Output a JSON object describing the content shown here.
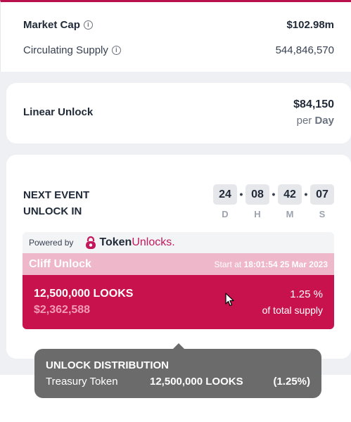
{
  "market": {
    "market_cap_label": "Market Cap",
    "market_cap_value": "$102.98m",
    "circulating_label": "Circulating Supply",
    "circulating_value": "544,846,570",
    "info_icon": "info-icon"
  },
  "linear": {
    "label": "Linear Unlock",
    "amount": "$84,150",
    "per": "per",
    "period": "Day"
  },
  "next_event": {
    "title_line1": "NEXT EVENT",
    "title_line2": "UNLOCK IN",
    "countdown": [
      {
        "value": "24",
        "unit": "D"
      },
      {
        "value": "08",
        "unit": "H"
      },
      {
        "value": "42",
        "unit": "M"
      },
      {
        "value": "07",
        "unit": "S"
      }
    ],
    "separator": "•"
  },
  "powered": {
    "label": "Powered by",
    "brand_token": "Token",
    "brand_unlocks": "Unlocks."
  },
  "cliff": {
    "title": "Cliff Unlock",
    "start_prefix": "Start at",
    "start_value": "18:01:54 25 Mar 2023",
    "amount": "12,500,000 LOOKS",
    "usd": "$2,362,588",
    "pct": "1.25 %",
    "of_supply": "of total supply"
  },
  "tooltip": {
    "title": "UNLOCK DISTRIBUTION",
    "name": "Treasury Token",
    "amount": "12,500,000 LOOKS",
    "pct": "(1.25%)"
  },
  "colors": {
    "accent": "#c8124e",
    "accent_light": "#eeb7ca",
    "tooltip_bg": "#6b6b6b"
  }
}
